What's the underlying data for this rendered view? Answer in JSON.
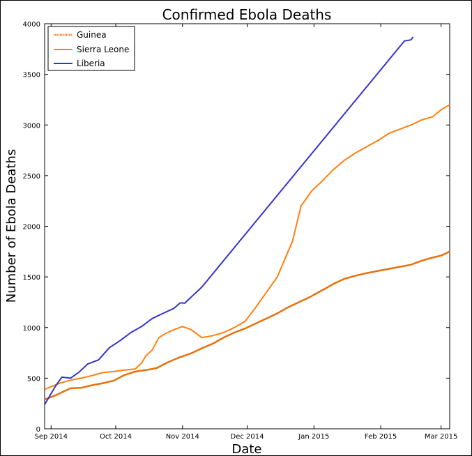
{
  "chart_data": {
    "type": "line",
    "title": "Confirmed Ebola Deaths",
    "xlabel": "Date",
    "ylabel": "Number of Ebola Deaths",
    "x_range": [
      "2014-08-29",
      "2015-03-05"
    ],
    "ylim": [
      0,
      4000
    ],
    "grid": false,
    "legend_position": "top-left",
    "x_ticks": [
      {
        "date": "2014-09-01",
        "label": "Sep 2014"
      },
      {
        "date": "2014-10-01",
        "label": "Oct 2014"
      },
      {
        "date": "2014-11-01",
        "label": "Nov 2014"
      },
      {
        "date": "2014-12-01",
        "label": "Dec 2014"
      },
      {
        "date": "2015-01-01",
        "label": "Jan 2015"
      },
      {
        "date": "2015-02-01",
        "label": "Feb 2015"
      },
      {
        "date": "2015-03-01",
        "label": "Mar 2015"
      }
    ],
    "y_ticks": [
      {
        "value": 0,
        "label": "0"
      },
      {
        "value": 500,
        "label": "500"
      },
      {
        "value": 1000,
        "label": "1000"
      },
      {
        "value": 1500,
        "label": "1500"
      },
      {
        "value": 2000,
        "label": "2000"
      },
      {
        "value": 2500,
        "label": "2500"
      },
      {
        "value": 3000,
        "label": "3000"
      },
      {
        "value": 3500,
        "label": "3500"
      },
      {
        "value": 4000,
        "label": "4000"
      }
    ],
    "series": [
      {
        "name": "Guinea",
        "color": "#ff7f0e",
        "style": "dotted-orange",
        "points": [
          [
            "2014-08-29",
            290
          ],
          [
            "2014-09-03",
            330
          ],
          [
            "2014-09-08",
            380
          ],
          [
            "2014-09-10",
            400
          ],
          [
            "2014-09-15",
            405
          ],
          [
            "2014-09-20",
            430
          ],
          [
            "2014-09-25",
            450
          ],
          [
            "2014-09-30",
            475
          ],
          [
            "2014-10-05",
            530
          ],
          [
            "2014-10-10",
            565
          ],
          [
            "2014-10-15",
            580
          ],
          [
            "2014-10-20",
            600
          ],
          [
            "2014-10-25",
            655
          ],
          [
            "2014-10-30",
            700
          ],
          [
            "2014-11-05",
            745
          ],
          [
            "2014-11-10",
            795
          ],
          [
            "2014-11-15",
            840
          ],
          [
            "2014-11-20",
            900
          ],
          [
            "2014-11-25",
            950
          ],
          [
            "2014-11-30",
            990
          ],
          [
            "2014-12-05",
            1040
          ],
          [
            "2014-12-10",
            1090
          ],
          [
            "2014-12-15",
            1140
          ],
          [
            "2014-12-20",
            1200
          ],
          [
            "2014-12-25",
            1250
          ],
          [
            "2014-12-30",
            1300
          ],
          [
            "2015-01-05",
            1370
          ],
          [
            "2015-01-10",
            1430
          ],
          [
            "2015-01-15",
            1480
          ],
          [
            "2015-01-20",
            1510
          ],
          [
            "2015-01-25",
            1535
          ],
          [
            "2015-01-31",
            1560
          ],
          [
            "2015-02-05",
            1580
          ],
          [
            "2015-02-10",
            1600
          ],
          [
            "2015-02-15",
            1620
          ],
          [
            "2015-02-20",
            1660
          ],
          [
            "2015-02-25",
            1690
          ],
          [
            "2015-03-01",
            1710
          ],
          [
            "2015-03-05",
            1750
          ]
        ]
      },
      {
        "name": "Sierra Leone",
        "color": "#ff7f0e",
        "style": "solid",
        "points": [
          [
            "2014-08-29",
            390
          ],
          [
            "2014-09-05",
            450
          ],
          [
            "2014-09-10",
            480
          ],
          [
            "2014-09-15",
            500
          ],
          [
            "2014-09-20",
            525
          ],
          [
            "2014-09-25",
            555
          ],
          [
            "2014-09-30",
            565
          ],
          [
            "2014-10-05",
            580
          ],
          [
            "2014-10-10",
            590
          ],
          [
            "2014-10-13",
            650
          ],
          [
            "2014-10-15",
            720
          ],
          [
            "2014-10-18",
            780
          ],
          [
            "2014-10-21",
            900
          ],
          [
            "2014-10-24",
            940
          ],
          [
            "2014-10-27",
            970
          ],
          [
            "2014-11-01",
            1010
          ],
          [
            "2014-11-05",
            980
          ],
          [
            "2014-11-10",
            900
          ],
          [
            "2014-11-15",
            920
          ],
          [
            "2014-11-20",
            950
          ],
          [
            "2014-11-25",
            1000
          ],
          [
            "2014-11-30",
            1060
          ],
          [
            "2014-12-05",
            1200
          ],
          [
            "2014-12-10",
            1350
          ],
          [
            "2014-12-15",
            1500
          ],
          [
            "2014-12-18",
            1650
          ],
          [
            "2014-12-22",
            1850
          ],
          [
            "2014-12-26",
            2200
          ],
          [
            "2014-12-31",
            2350
          ],
          [
            "2015-01-05",
            2450
          ],
          [
            "2015-01-10",
            2560
          ],
          [
            "2015-01-15",
            2650
          ],
          [
            "2015-01-20",
            2720
          ],
          [
            "2015-01-25",
            2780
          ],
          [
            "2015-01-31",
            2850
          ],
          [
            "2015-02-05",
            2920
          ],
          [
            "2015-02-10",
            2960
          ],
          [
            "2015-02-15",
            3000
          ],
          [
            "2015-02-20",
            3050
          ],
          [
            "2015-02-25",
            3080
          ],
          [
            "2015-03-01",
            3150
          ],
          [
            "2015-03-05",
            3200
          ]
        ]
      },
      {
        "name": "Liberia",
        "color": "#3333cc",
        "style": "solid",
        "points": [
          [
            "2014-08-29",
            240
          ],
          [
            "2014-09-03",
            420
          ],
          [
            "2014-09-06",
            510
          ],
          [
            "2014-09-10",
            500
          ],
          [
            "2014-09-14",
            560
          ],
          [
            "2014-09-18",
            640
          ],
          [
            "2014-09-23",
            680
          ],
          [
            "2014-09-28",
            800
          ],
          [
            "2014-10-03",
            870
          ],
          [
            "2014-10-08",
            950
          ],
          [
            "2014-10-13",
            1010
          ],
          [
            "2014-10-18",
            1090
          ],
          [
            "2014-10-23",
            1140
          ],
          [
            "2014-10-28",
            1190
          ],
          [
            "2014-10-31",
            1245
          ],
          [
            "2014-11-02",
            1240
          ],
          [
            "2014-11-05",
            1300
          ],
          [
            "2014-11-10",
            1400
          ],
          [
            "2015-02-12",
            3830
          ],
          [
            "2015-02-15",
            3840
          ],
          [
            "2015-02-16",
            3870
          ]
        ]
      }
    ]
  }
}
